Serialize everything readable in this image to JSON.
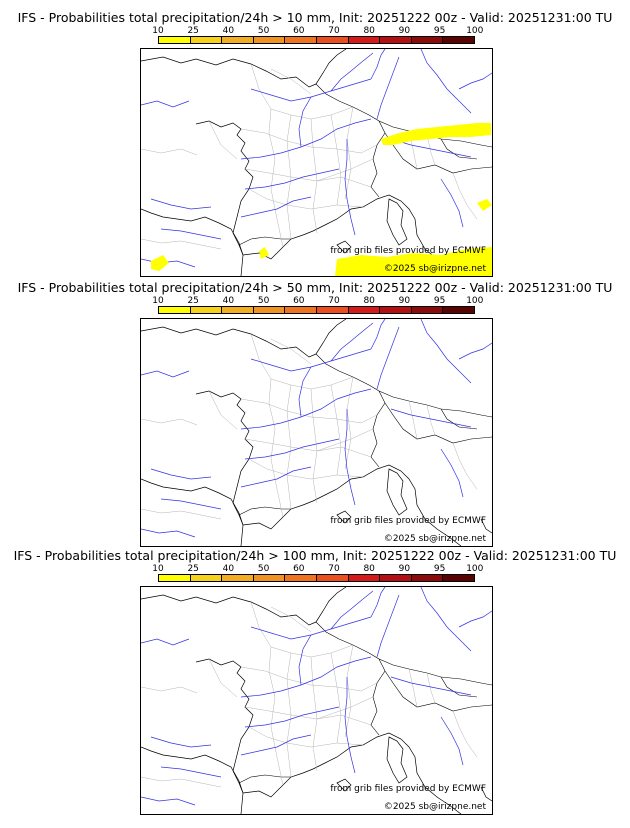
{
  "source_credit": "from grib files provided by ECMWF",
  "copyright": "©2025 sb@irizpne.net",
  "legend_ticks": [
    "10",
    "25",
    "40",
    "50",
    "60",
    "70",
    "80",
    "90",
    "95",
    "100"
  ],
  "legend_colors": [
    "#ffff00",
    "#f7d21b",
    "#f2ae23",
    "#ef9424",
    "#ee7422",
    "#ec4f1f",
    "#d61a1a",
    "#b40f12",
    "#8b0a0a",
    "#5a0303"
  ],
  "colors": {
    "rivers": "#3232e6",
    "borders_regions": "#b4b4b4",
    "coastline": "#000000",
    "probability_fill": "#ffff00"
  },
  "panels": [
    {
      "title": "IFS - Probabilities total precipitation/24h > 10 mm, Init: 20251222 00z - Valid: 20251231:00 TU",
      "has_precip": true
    },
    {
      "title": "IFS - Probabilities total precipitation/24h > 50 mm, Init: 20251222 00z - Valid: 20251231:00 TU",
      "has_precip": false
    },
    {
      "title": "IFS - Probabilities total precipitation/24h > 100 mm, Init: 20251222 00z - Valid: 20251231:00 TU",
      "has_precip": false
    }
  ]
}
